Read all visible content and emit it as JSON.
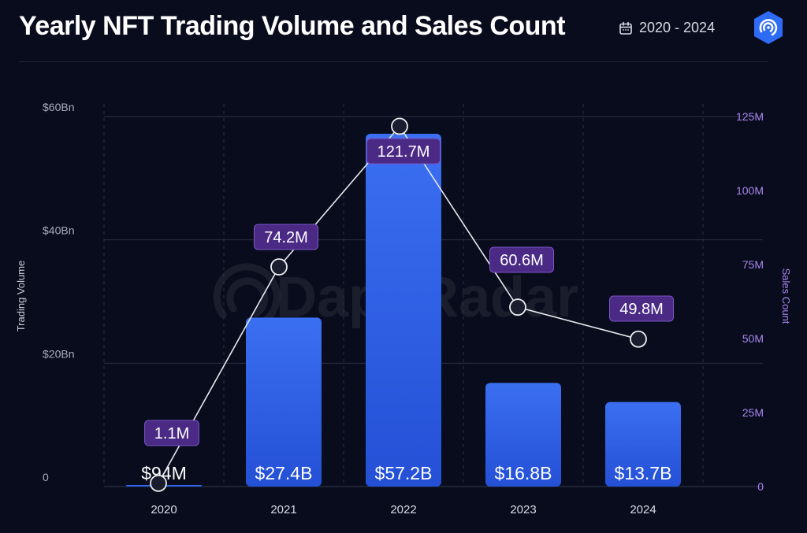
{
  "header": {
    "title": "Yearly NFT Trading Volume and Sales Count",
    "date_range": "2020 - 2024",
    "calendar_icon": "calendar-icon",
    "logo_icon": "dappradar-logo-icon"
  },
  "watermark": "DappRadar",
  "colors": {
    "background": "#080c1c",
    "bar_top": "#3a6cf0",
    "bar_bottom": "#2553d8",
    "line": "#e8e8ee",
    "label_box": "#4b2a86",
    "label_border": "#7a55c8",
    "right_axis": "#a986ee",
    "left_axis": "#a9acbd",
    "grid": "#2b3146"
  },
  "chart_data": {
    "type": "bar",
    "categories": [
      "2020",
      "2021",
      "2022",
      "2023",
      "2024"
    ],
    "ylabel": "Trading Volume",
    "y2label": "Sales Count",
    "ylim": [
      0,
      60
    ],
    "y2lim": [
      0,
      125
    ],
    "yticks": [
      "0",
      "$20Bn",
      "$40Bn",
      "$60Bn"
    ],
    "y2ticks": [
      "0",
      "25M",
      "50M",
      "75M",
      "100M",
      "125M"
    ],
    "grid": true,
    "series": [
      {
        "name": "Trading Volume",
        "kind": "bar",
        "values": [
          0.094,
          27.4,
          57.2,
          16.8,
          13.7
        ],
        "labels": [
          "$94M",
          "$27.4B",
          "$57.2B",
          "$16.8B",
          "$13.7B"
        ]
      },
      {
        "name": "Sales Count",
        "kind": "line",
        "values": [
          1.1,
          74.2,
          121.7,
          60.6,
          49.8
        ],
        "labels": [
          "1.1M",
          "74.2M",
          "121.7M",
          "60.6M",
          "49.8M"
        ]
      }
    ]
  }
}
